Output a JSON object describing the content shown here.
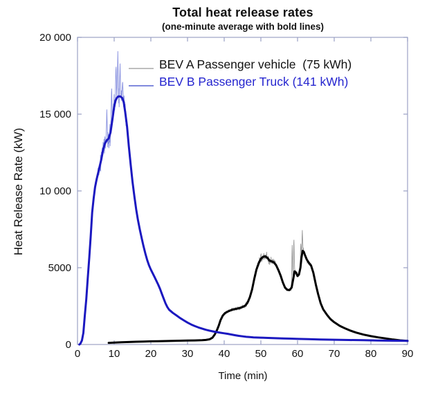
{
  "title": "Total heat release rates",
  "subtitle": "(one-minute average with bold lines)",
  "axes": {
    "x": {
      "label": "Time (min)",
      "tick_values": [
        0,
        10,
        20,
        30,
        40,
        50,
        60,
        70,
        80,
        90
      ],
      "tick_labels": [
        "0",
        "10",
        "20",
        "30",
        "40",
        "50",
        "60",
        "70",
        "80",
        "90"
      ]
    },
    "y": {
      "label": "Heat Release Rate (kW)",
      "tick_values": [
        0,
        5000,
        10000,
        15000,
        20000
      ],
      "tick_labels": [
        "0",
        "5000",
        "10 000",
        "15 000",
        "20 000"
      ]
    }
  },
  "colors": {
    "frame": "#a3a9c9",
    "tick": "#9aa1c5",
    "background": "#ffffff",
    "bev_a_bold": "#000000",
    "bev_a_thin": "#909090",
    "bev_b_bold": "#1b18c0",
    "bev_b_thin": "#8089dd",
    "legend_text_a": "#111111",
    "legend_text_b": "#2525cf"
  },
  "legend": [
    {
      "label": "BEV A Passenger vehicle  (75 kWh)",
      "text_color": "#111111",
      "swatch_color": "#a8a8a8"
    },
    {
      "label": "BEV B Passenger Truck (141 kWh)",
      "text_color": "#2525cf",
      "swatch_color": "#8089dd"
    }
  ],
  "chart_data": {
    "type": "line",
    "title": "Total heat release rates",
    "subtitle": "(one-minute average with bold lines)",
    "xlabel": "Time (min)",
    "ylabel": "Heat Release Rate (kW)",
    "xlim": [
      0,
      90
    ],
    "ylim": [
      0,
      20000
    ],
    "grid": false,
    "legend_position": "upper-center-inside",
    "series": [
      {
        "name": "BEV A Passenger vehicle (75 kWh)",
        "color": "#000000",
        "thin_color": "#909090",
        "points": [
          [
            8.5,
            110
          ],
          [
            10,
            128
          ],
          [
            12,
            148
          ],
          [
            14,
            164
          ],
          [
            16,
            180
          ],
          [
            18,
            194
          ],
          [
            20,
            206
          ],
          [
            22,
            216
          ],
          [
            24,
            226
          ],
          [
            26,
            236
          ],
          [
            28,
            246
          ],
          [
            30,
            256
          ],
          [
            32,
            267
          ],
          [
            34,
            281
          ],
          [
            35,
            298
          ],
          [
            36,
            340
          ],
          [
            36.8,
            440
          ],
          [
            37.4,
            640
          ],
          [
            38,
            920
          ],
          [
            38.5,
            1210
          ],
          [
            39,
            1580
          ],
          [
            39.6,
            1880
          ],
          [
            40.2,
            2040
          ],
          [
            41,
            2150
          ],
          [
            42,
            2250
          ],
          [
            43,
            2310
          ],
          [
            44,
            2360
          ],
          [
            45,
            2440
          ],
          [
            45.8,
            2540
          ],
          [
            46.4,
            2740
          ],
          [
            47,
            3080
          ],
          [
            47.6,
            3580
          ],
          [
            48.2,
            4280
          ],
          [
            48.8,
            4880
          ],
          [
            49.4,
            5280
          ],
          [
            50,
            5580
          ],
          [
            50.6,
            5710
          ],
          [
            51.2,
            5740
          ],
          [
            51.8,
            5640
          ],
          [
            52.4,
            5460
          ],
          [
            53,
            5410
          ],
          [
            53.6,
            5340
          ],
          [
            54.2,
            5140
          ],
          [
            54.8,
            4840
          ],
          [
            55.4,
            4480
          ],
          [
            56,
            4040
          ],
          [
            56.6,
            3700
          ],
          [
            57.2,
            3560
          ],
          [
            57.8,
            3540
          ],
          [
            58.4,
            3710
          ],
          [
            58.8,
            4220
          ],
          [
            59.2,
            4760
          ],
          [
            59.6,
            4690
          ],
          [
            60,
            4460
          ],
          [
            60.4,
            4560
          ],
          [
            60.8,
            5010
          ],
          [
            61.1,
            5690
          ],
          [
            61.4,
            6100
          ],
          [
            61.7,
            6040
          ],
          [
            62,
            5840
          ],
          [
            62.5,
            5540
          ],
          [
            63,
            5350
          ],
          [
            63.7,
            5140
          ],
          [
            64.3,
            4680
          ],
          [
            65,
            3890
          ],
          [
            65.6,
            3290
          ],
          [
            66.3,
            2690
          ],
          [
            67,
            2290
          ],
          [
            68,
            1940
          ],
          [
            69,
            1650
          ],
          [
            70,
            1450
          ],
          [
            71.5,
            1215
          ],
          [
            73,
            1045
          ],
          [
            74.5,
            895
          ],
          [
            76,
            775
          ],
          [
            78,
            645
          ],
          [
            80,
            545
          ],
          [
            82,
            465
          ],
          [
            84,
            395
          ],
          [
            86,
            325
          ],
          [
            88,
            272
          ],
          [
            90,
            232
          ]
        ],
        "noise_envelope": [
          [
            8.5,
            15
          ],
          [
            30,
            20
          ],
          [
            36,
            30
          ],
          [
            38,
            80
          ],
          [
            40,
            120
          ],
          [
            43,
            130
          ],
          [
            46,
            200
          ],
          [
            48,
            330
          ],
          [
            50,
            380
          ],
          [
            52,
            360
          ],
          [
            54,
            250
          ],
          [
            56,
            150
          ],
          [
            57.5,
            130
          ],
          [
            58.5,
            260
          ],
          [
            60,
            280
          ],
          [
            61.5,
            320
          ],
          [
            62.5,
            250
          ],
          [
            64,
            150
          ],
          [
            66,
            90
          ],
          [
            70,
            55
          ],
          [
            75,
            40
          ],
          [
            90,
            30
          ]
        ],
        "spikes": [
          [
            58.55,
            6600
          ],
          [
            59.0,
            7050
          ],
          [
            60.9,
            6700
          ],
          [
            61.3,
            7450
          ]
        ]
      },
      {
        "name": "BEV B Passenger Truck (141 kWh)",
        "color": "#1b18c0",
        "thin_color": "#8089dd",
        "points": [
          [
            0.5,
            0
          ],
          [
            0.8,
            60
          ],
          [
            1.2,
            260
          ],
          [
            1.6,
            760
          ],
          [
            2,
            1900
          ],
          [
            2.4,
            2950
          ],
          [
            2.8,
            4300
          ],
          [
            3.2,
            5650
          ],
          [
            3.6,
            7050
          ],
          [
            4,
            8600
          ],
          [
            4.4,
            9500
          ],
          [
            4.8,
            10250
          ],
          [
            5.2,
            10750
          ],
          [
            5.6,
            11150
          ],
          [
            6,
            11550
          ],
          [
            6.5,
            12050
          ],
          [
            7,
            12700
          ],
          [
            7.5,
            13100
          ],
          [
            8,
            13300
          ],
          [
            8.5,
            13420
          ],
          [
            9,
            13800
          ],
          [
            9.5,
            14600
          ],
          [
            10,
            15500
          ],
          [
            10.4,
            15900
          ],
          [
            10.8,
            16080
          ],
          [
            11.2,
            16160
          ],
          [
            11.7,
            16150
          ],
          [
            12.2,
            16050
          ],
          [
            12.6,
            15780
          ],
          [
            13,
            15150
          ],
          [
            13.5,
            14200
          ],
          [
            14,
            12900
          ],
          [
            14.5,
            11700
          ],
          [
            15,
            10600
          ],
          [
            15.5,
            9650
          ],
          [
            16,
            8800
          ],
          [
            16.5,
            8100
          ],
          [
            17,
            7480
          ],
          [
            17.5,
            6920
          ],
          [
            18,
            6400
          ],
          [
            18.5,
            5920
          ],
          [
            19,
            5500
          ],
          [
            19.5,
            5150
          ],
          [
            20,
            4880
          ],
          [
            21,
            4400
          ],
          [
            22,
            3900
          ],
          [
            22.5,
            3620
          ],
          [
            23,
            3300
          ],
          [
            23.5,
            2980
          ],
          [
            24,
            2680
          ],
          [
            24.5,
            2440
          ],
          [
            25,
            2260
          ],
          [
            26,
            2060
          ],
          [
            27,
            1890
          ],
          [
            28,
            1720
          ],
          [
            29,
            1570
          ],
          [
            30,
            1430
          ],
          [
            31,
            1300
          ],
          [
            32,
            1200
          ],
          [
            33,
            1110
          ],
          [
            34,
            1030
          ],
          [
            35,
            960
          ],
          [
            36,
            900
          ],
          [
            37,
            850
          ],
          [
            38,
            805
          ],
          [
            39,
            765
          ],
          [
            40,
            730
          ],
          [
            41,
            695
          ],
          [
            42,
            650
          ],
          [
            43,
            605
          ],
          [
            44,
            565
          ],
          [
            45,
            530
          ],
          [
            46,
            502
          ],
          [
            47,
            482
          ],
          [
            48,
            466
          ],
          [
            50,
            448
          ],
          [
            52,
            430
          ],
          [
            54,
            412
          ],
          [
            56,
            396
          ],
          [
            58,
            381
          ],
          [
            60,
            366
          ],
          [
            63,
            346
          ],
          [
            66,
            329
          ],
          [
            70,
            309
          ],
          [
            74,
            293
          ],
          [
            78,
            278
          ],
          [
            82,
            262
          ],
          [
            86,
            247
          ],
          [
            90,
            233
          ]
        ],
        "noise_envelope": [
          [
            0.5,
            10
          ],
          [
            2,
            120
          ],
          [
            4,
            350
          ],
          [
            6,
            600
          ],
          [
            8,
            850
          ],
          [
            9,
            950
          ],
          [
            10,
            1050
          ],
          [
            11,
            1100
          ],
          [
            12,
            950
          ],
          [
            13,
            700
          ],
          [
            14,
            400
          ],
          [
            15,
            250
          ],
          [
            16,
            180
          ],
          [
            18,
            120
          ],
          [
            20,
            90
          ],
          [
            25,
            60
          ],
          [
            30,
            45
          ],
          [
            40,
            35
          ],
          [
            60,
            25
          ],
          [
            90,
            20
          ]
        ],
        "spikes": [
          [
            8.0,
            15300
          ],
          [
            9.3,
            16900
          ],
          [
            10.5,
            18300
          ],
          [
            11.0,
            19100
          ],
          [
            11.6,
            18300
          ],
          [
            12.3,
            17200
          ]
        ]
      }
    ]
  }
}
